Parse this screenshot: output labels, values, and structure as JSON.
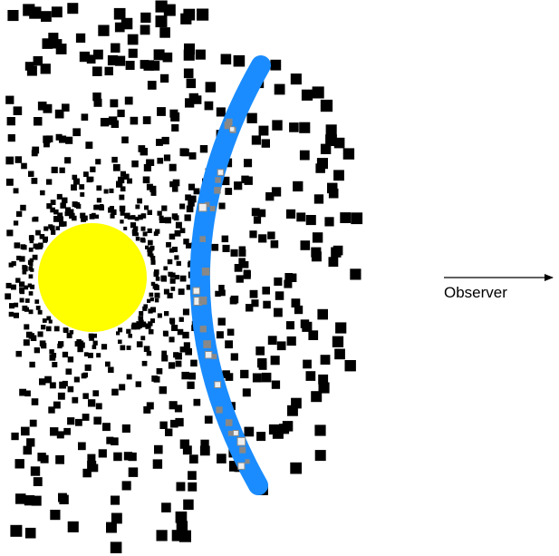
{
  "label": "Observer"
}
